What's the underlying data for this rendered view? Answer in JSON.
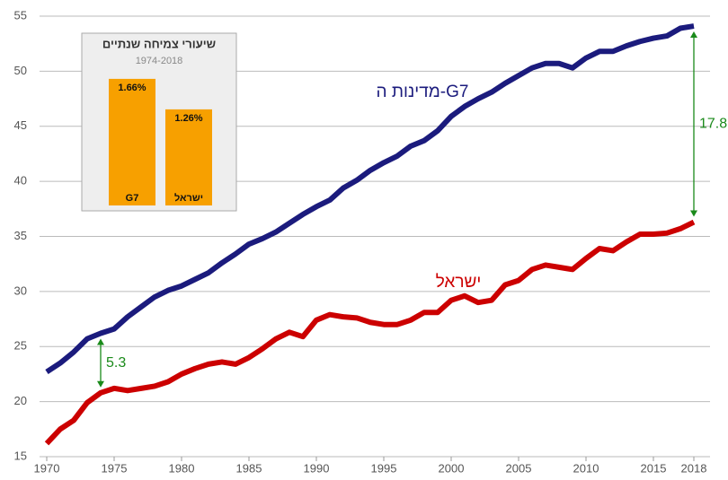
{
  "chart_data": [
    {
      "type": "line",
      "x": [
        1970,
        1971,
        1972,
        1973,
        1974,
        1975,
        1976,
        1977,
        1978,
        1979,
        1980,
        1981,
        1982,
        1983,
        1984,
        1985,
        1986,
        1987,
        1988,
        1989,
        1990,
        1991,
        1992,
        1993,
        1994,
        1995,
        1996,
        1997,
        1998,
        1999,
        2000,
        2001,
        2002,
        2003,
        2004,
        2005,
        2006,
        2007,
        2008,
        2009,
        2010,
        2011,
        2012,
        2013,
        2014,
        2015,
        2016,
        2017,
        2018
      ],
      "series": [
        {
          "name": "מדינות ה-G7",
          "color": "#1b1b7d",
          "values": [
            22.7,
            23.5,
            24.5,
            25.7,
            26.2,
            26.6,
            27.7,
            28.6,
            29.5,
            30.1,
            30.5,
            31.1,
            31.7,
            32.6,
            33.4,
            34.3,
            34.8,
            35.4,
            36.2,
            37.0,
            37.7,
            38.3,
            39.4,
            40.1,
            41.0,
            41.7,
            42.3,
            43.2,
            43.7,
            44.6,
            45.9,
            46.8,
            47.5,
            48.1,
            48.9,
            49.6,
            50.3,
            50.7,
            50.7,
            50.3,
            51.2,
            51.8,
            51.8,
            52.3,
            52.7,
            53.0,
            53.2,
            53.9,
            54.1
          ]
        },
        {
          "name": "ישראל",
          "color": "#cc0000",
          "values": [
            16.2,
            17.5,
            18.3,
            19.9,
            20.8,
            21.2,
            21.0,
            21.2,
            21.4,
            21.8,
            22.5,
            23.0,
            23.4,
            23.6,
            23.4,
            24.0,
            24.8,
            25.7,
            26.3,
            25.9,
            27.4,
            27.9,
            27.7,
            27.6,
            27.2,
            27.0,
            27.0,
            27.4,
            28.1,
            28.1,
            29.2,
            29.6,
            29.0,
            29.2,
            30.6,
            31.0,
            32.0,
            32.4,
            32.2,
            32.0,
            33.0,
            33.9,
            33.7,
            34.5,
            35.2,
            35.2,
            35.3,
            35.7,
            36.3
          ]
        }
      ],
      "xlim": [
        1970,
        2018
      ],
      "xticks": [
        1970,
        1975,
        1980,
        1985,
        1990,
        1995,
        2000,
        2005,
        2010,
        2015,
        2018
      ],
      "ylim": [
        15,
        55
      ],
      "yticks": [
        15,
        20,
        25,
        30,
        35,
        40,
        45,
        50,
        55
      ],
      "grid": true,
      "annotations": [
        {
          "label": "5.3",
          "x": 1974,
          "color": "#1a8a1a"
        },
        {
          "label": "17.8",
          "x": 2018,
          "color": "#1a8a1a"
        }
      ]
    },
    {
      "type": "bar",
      "title": "שיעורי צמיחה שנתיים",
      "subtitle": "1974-2018",
      "categories": [
        "G7",
        "ישראל"
      ],
      "values": [
        1.66,
        1.26
      ],
      "value_labels": [
        "1.66%",
        "1.26%"
      ],
      "color": "#f7a000"
    }
  ]
}
